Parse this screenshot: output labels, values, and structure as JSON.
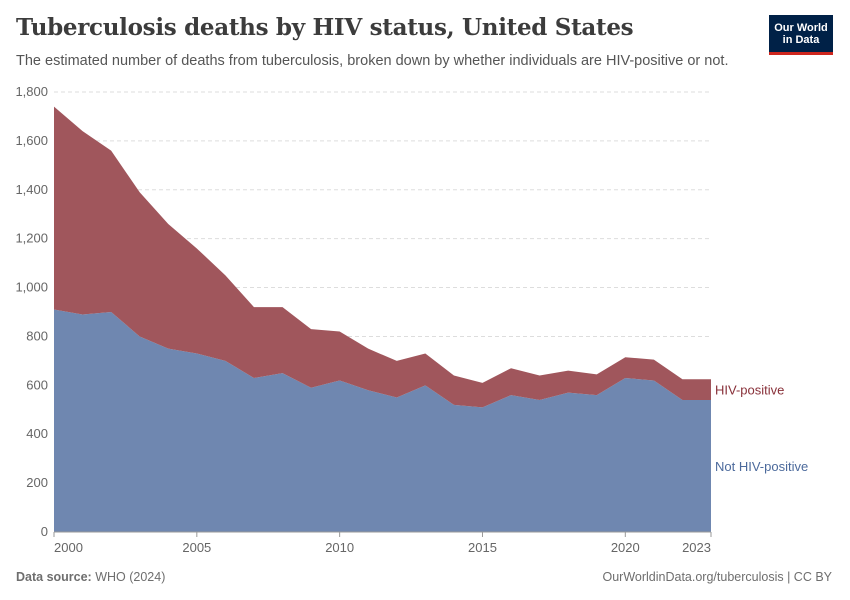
{
  "header": {
    "title": "Tuberculosis deaths by HIV status, United States",
    "subtitle": "The estimated number of deaths from tuberculosis, broken down by whether individuals are HIV-positive or not."
  },
  "logo": {
    "line1": "Our World",
    "line2": "in Data"
  },
  "footer": {
    "source_label": "Data source:",
    "source_value": "WHO (2024)",
    "url_text": "OurWorldinData.org/tuberculosis | CC BY"
  },
  "colors": {
    "not_hiv_positive": "#6f87b0",
    "hiv_positive": "#a0565c",
    "not_hiv_label": "#4c6a9c",
    "hiv_label": "#883039",
    "grid": "#dddddd",
    "tick_text": "#666666"
  },
  "chart_data": {
    "type": "area",
    "stacked": true,
    "x": [
      2000,
      2001,
      2002,
      2003,
      2004,
      2005,
      2006,
      2007,
      2008,
      2009,
      2010,
      2011,
      2012,
      2013,
      2014,
      2015,
      2016,
      2017,
      2018,
      2019,
      2020,
      2021,
      2022,
      2023
    ],
    "series": [
      {
        "name": "Not HIV-positive",
        "values": [
          910,
          890,
          900,
          800,
          750,
          730,
          700,
          630,
          650,
          590,
          620,
          580,
          550,
          600,
          520,
          510,
          560,
          540,
          570,
          560,
          630,
          620,
          540,
          540
        ]
      },
      {
        "name": "HIV-positive",
        "values": [
          830,
          750,
          660,
          590,
          510,
          430,
          350,
          290,
          270,
          240,
          200,
          170,
          150,
          130,
          120,
          100,
          110,
          100,
          90,
          85,
          85,
          85,
          85,
          85
        ]
      }
    ],
    "xticks": [
      "2000",
      "2005",
      "2010",
      "2015",
      "2020",
      "2023"
    ],
    "yticks": [
      "0",
      "200",
      "400",
      "600",
      "800",
      "1,000",
      "1,200",
      "1,400",
      "1,600",
      "1,800"
    ],
    "ylim": [
      0,
      1800
    ],
    "xlim": [
      2000,
      2023
    ],
    "grid": "horizontal dashed",
    "legend": "right, inline labels"
  }
}
